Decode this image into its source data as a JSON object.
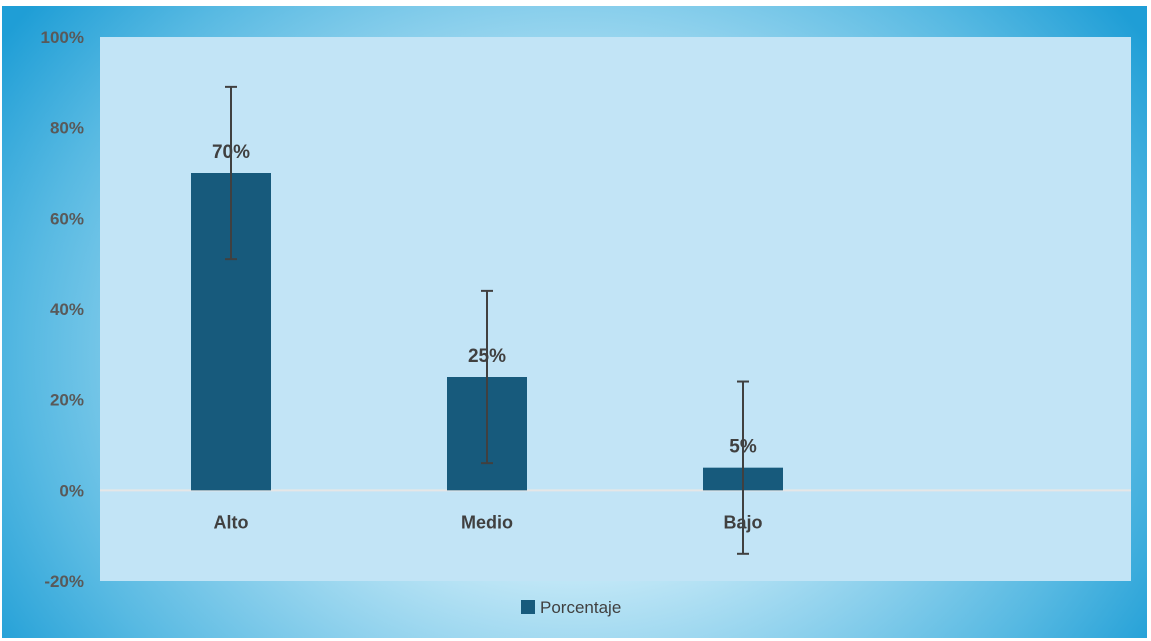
{
  "chart_data": {
    "type": "bar",
    "title": "",
    "categories": [
      "Alto",
      "Medio",
      "Bajo"
    ],
    "series": [
      {
        "name": "Porcentaje",
        "values": [
          0.7,
          0.25,
          0.05
        ],
        "error_bar": 0.19,
        "data_labels": [
          "70%",
          "25%",
          "5%"
        ]
      }
    ],
    "y_ticks": [
      "100%",
      "80%",
      "60%",
      "40%",
      "20%",
      "0%",
      "-20%"
    ],
    "ylim": [
      -0.2,
      1.0
    ],
    "grid": false,
    "legend": "bottom"
  },
  "colors": {
    "bar": "#175a7c",
    "plot_area": "#c2e4f6",
    "zero_line": "#e6e6e6",
    "error_bar": "#404040"
  }
}
